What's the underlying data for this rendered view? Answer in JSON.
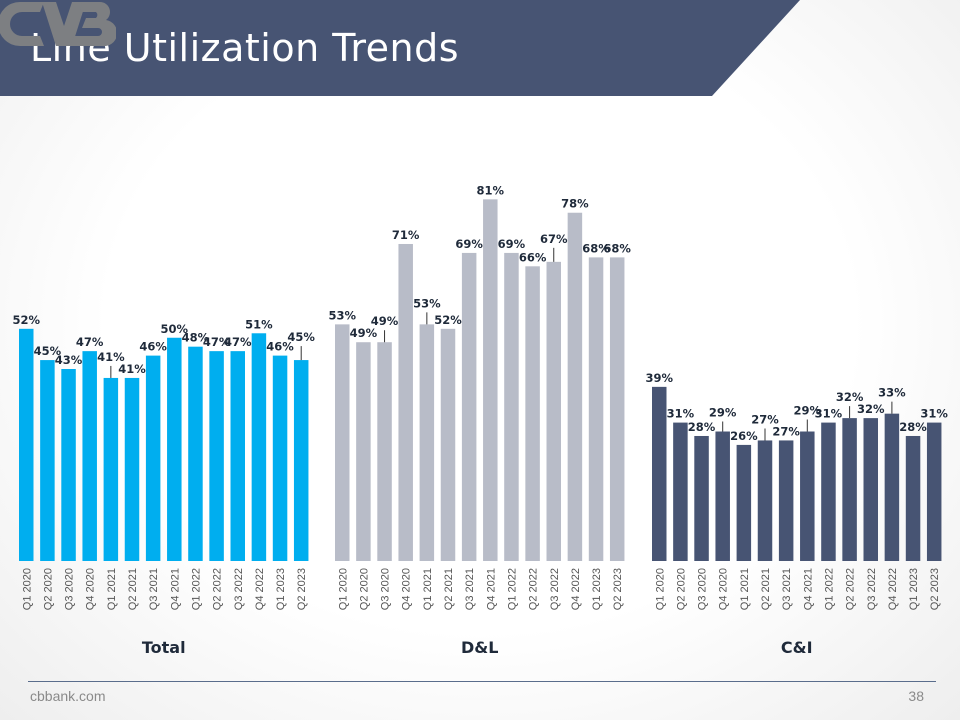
{
  "header": {
    "title": "Line Utilization Trends",
    "brand_color": "#475473",
    "logo_icon": "cvb-logo-icon"
  },
  "footer": {
    "url": "cbbank.com",
    "page": "38"
  },
  "chart_data": [
    {
      "type": "bar",
      "group_label": "Total",
      "color": "#00aeef",
      "categories": [
        "Q1 2020",
        "Q2 2020",
        "Q3 2020",
        "Q4 2020",
        "Q1 2021",
        "Q2 2021",
        "Q3 2021",
        "Q4 2021",
        "Q1 2022",
        "Q2 2022",
        "Q3 2022",
        "Q4 2022",
        "Q1 2023",
        "Q2 2023"
      ],
      "values": [
        52,
        45,
        43,
        47,
        41,
        41,
        46,
        50,
        48,
        47,
        47,
        51,
        46,
        45
      ],
      "data_labels": [
        "52%",
        "45%",
        "43%",
        "47%",
        "41%",
        "41%",
        "46%",
        "50%",
        "48%",
        "47%",
        "47%",
        "51%",
        "46%",
        "45%"
      ]
    },
    {
      "type": "bar",
      "group_label": "D&L",
      "color": "#b8bcc8",
      "categories": [
        "Q1 2020",
        "Q2 2020",
        "Q3 2020",
        "Q4 2020",
        "Q1 2021",
        "Q2 2021",
        "Q3 2021",
        "Q4 2021",
        "Q1 2022",
        "Q2 2022",
        "Q3 2022",
        "Q4 2022",
        "Q1 2023",
        "Q2 2023"
      ],
      "values": [
        53,
        49,
        49,
        71,
        53,
        52,
        69,
        81,
        69,
        66,
        67,
        78,
        68,
        68
      ],
      "data_labels": [
        "53%",
        "49%",
        "49%",
        "71%",
        "53%",
        "52%",
        "69%",
        "81%",
        "69%",
        "66%",
        "67%",
        "78%",
        "68%",
        "68%"
      ]
    },
    {
      "type": "bar",
      "group_label": "C&I",
      "color": "#475473",
      "categories": [
        "Q1 2020",
        "Q2 2020",
        "Q3 2020",
        "Q4 2020",
        "Q1 2021",
        "Q2 2021",
        "Q3 2021",
        "Q4 2021",
        "Q1 2022",
        "Q2 2022",
        "Q3 2022",
        "Q4 2022",
        "Q1 2023",
        "Q2 2023"
      ],
      "values": [
        39,
        31,
        28,
        29,
        26,
        27,
        27,
        29,
        31,
        32,
        32,
        33,
        28,
        31
      ],
      "data_labels": [
        "39%",
        "31%",
        "28%",
        "29%",
        "26%",
        "27%",
        "27%",
        "29%",
        "31%",
        "32%",
        "32%",
        "33%",
        "28%",
        "31%"
      ]
    }
  ]
}
